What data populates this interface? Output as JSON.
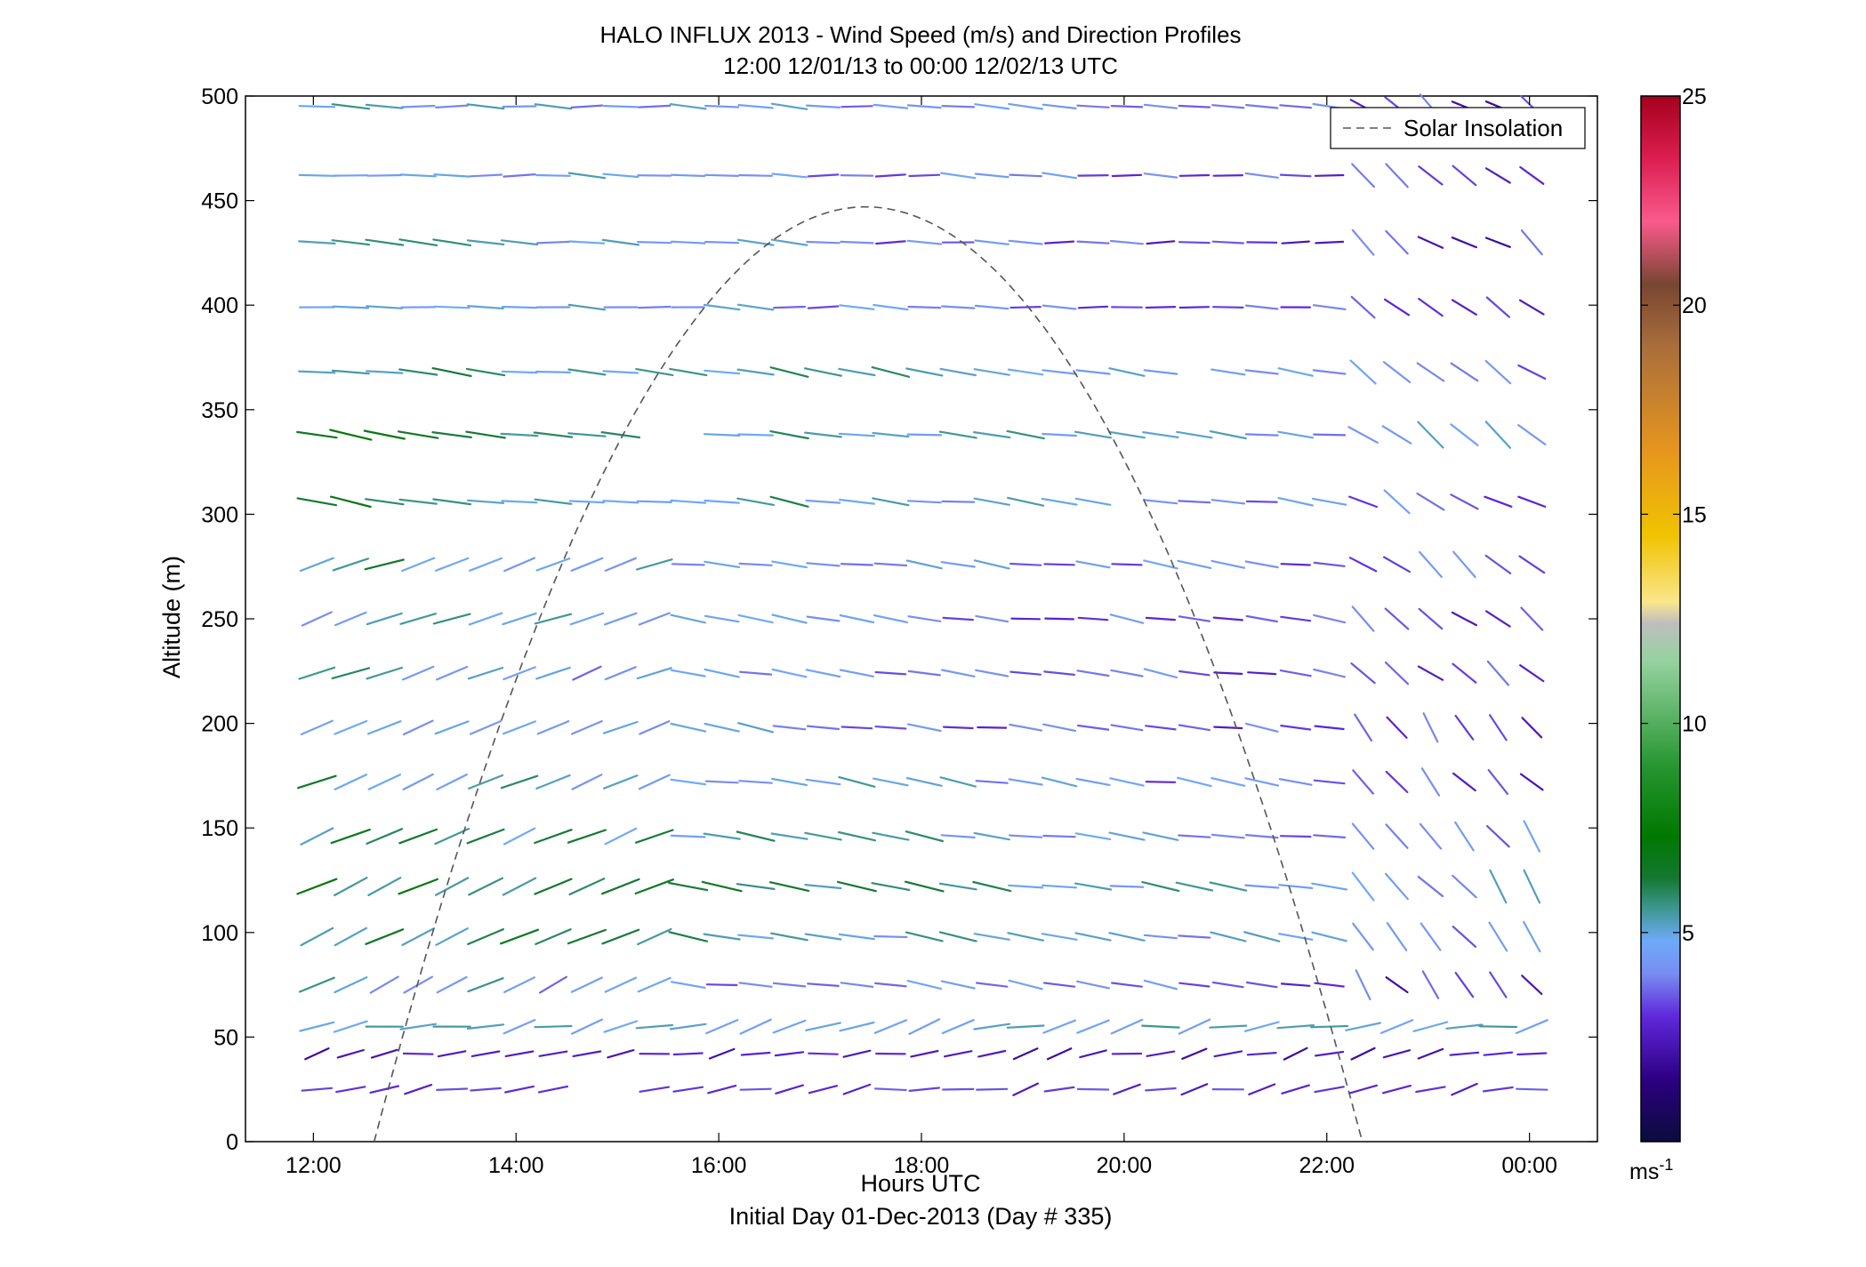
{
  "chart_data": {
    "type": "quiver",
    "title": "HALO INFLUX 2013 - Wind Speed (m/s) and Direction Profiles",
    "subtitle": "12:00 12/01/13 to 00:00 12/02/13  UTC",
    "xlabel": "Hours UTC",
    "xlabel2": "Initial Day 01-Dec-2013 (Day # 335)",
    "ylabel": "Altitude (m)",
    "xlim_hours": [
      11.33,
      24.67
    ],
    "ylim": [
      0,
      500
    ],
    "x_ticks": [
      {
        "hour": 12,
        "label": "12:00"
      },
      {
        "hour": 14,
        "label": "14:00"
      },
      {
        "hour": 16,
        "label": "16:00"
      },
      {
        "hour": 18,
        "label": "18:00"
      },
      {
        "hour": 20,
        "label": "20:00"
      },
      {
        "hour": 22,
        "label": "22:00"
      },
      {
        "hour": 24,
        "label": "00:00"
      }
    ],
    "y_ticks": [
      0,
      50,
      100,
      150,
      200,
      250,
      300,
      350,
      400,
      450,
      500
    ],
    "grid": false,
    "legend": {
      "position": "top-right",
      "entries": [
        "Solar Insolation"
      ]
    },
    "colorbar": {
      "min": 0,
      "max": 25,
      "ticks": [
        5,
        10,
        15,
        20,
        25
      ],
      "unit_label": "ms",
      "unit_sup": "-1"
    },
    "solar_insolation": {
      "style": "dashed",
      "color": "#555555",
      "start_hour": 12.6,
      "peak_hour": 17.45,
      "end_hour": 22.35,
      "peak_altitude": 447
    },
    "wind_samples": {
      "hours_step": 0.333,
      "start_hour": 12.0,
      "end_hour": 24.0,
      "altitudes": [
        25,
        42,
        55,
        75,
        98,
        122,
        146,
        172,
        198,
        224,
        250,
        276,
        306,
        338,
        368,
        399,
        430,
        462,
        495
      ],
      "mean_speed_ms": [
        2.0,
        1.5,
        4.0,
        5.0,
        6.0,
        6.5,
        6.0,
        5.5,
        5.0,
        5.0,
        5.0,
        5.5,
        6.0,
        6.5,
        6.0,
        5.0,
        5.0,
        5.0,
        5.0
      ],
      "gaps": [
        {
          "altitude": 25,
          "from_hour": 14.6,
          "to_hour": 15.0
        },
        {
          "altitude": 306,
          "from_hour": 19.7,
          "to_hour": 20.0
        },
        {
          "altitude": 338,
          "from_hour": 15.1,
          "to_hour": 15.7
        },
        {
          "altitude": 368,
          "from_hour": 20.6,
          "to_hour": 20.9
        }
      ]
    }
  }
}
